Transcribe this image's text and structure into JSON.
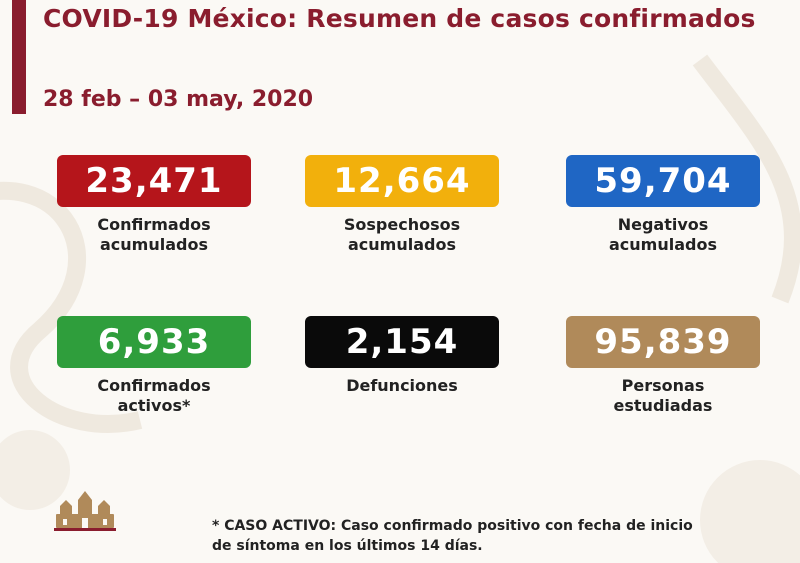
{
  "header": {
    "title": "COVID-19 México: Resumen de casos confirmados",
    "date_range": "28 feb – 03 may, 2020"
  },
  "stats": [
    {
      "value": "23,471",
      "label": "Confirmados\nacumulados",
      "color": "#b5151b"
    },
    {
      "value": "12,664",
      "label": "Sospechosos\nacumulados",
      "color": "#f2b00c"
    },
    {
      "value": "59,704",
      "label": "Negativos\nacumulados",
      "color": "#1f66c4"
    },
    {
      "value": "6,933",
      "label": "Confirmados\nactivos*",
      "color": "#2f9e3c"
    },
    {
      "value": "2,154",
      "label": "Defunciones",
      "color": "#0a0a0a"
    },
    {
      "value": "95,839",
      "label": "Personas\nestudiadas",
      "color": "#b08a5a"
    }
  ],
  "footnote": {
    "line1": "* CASO ACTIVO: Caso confirmado positivo con fecha de inicio",
    "line2": "de síntoma en los últimos 14 días."
  },
  "colors": {
    "accent": "#8a1d2e",
    "background": "#fbf9f5"
  },
  "icons": {
    "emblem": "government-building-emblem"
  }
}
